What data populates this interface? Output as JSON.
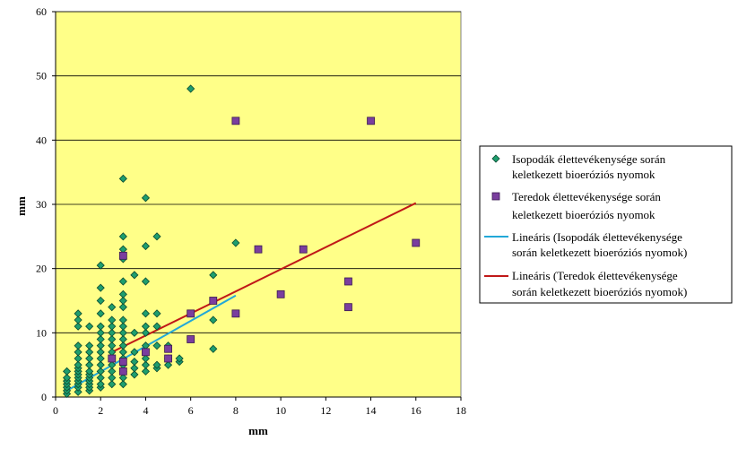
{
  "chart_data": {
    "type": "scatter",
    "xlabel": "mm",
    "ylabel": "mm",
    "xlim": [
      0,
      18
    ],
    "ylim": [
      0,
      60
    ],
    "xticks": [
      0,
      2,
      4,
      6,
      8,
      10,
      12,
      14,
      16,
      18
    ],
    "yticks": [
      0,
      10,
      20,
      30,
      40,
      50,
      60
    ],
    "grid": "horizontal",
    "legend_position": "right",
    "colors": {
      "figure_background": "#ffffff",
      "plot_background": "#ffff88",
      "gridline": "#000000",
      "isopoda": "#1e9e6e",
      "teredo": "#7a3e9e",
      "isopoda_trend": "#22a8d8",
      "teredo_trend": "#c01818"
    },
    "series": [
      {
        "name": "Isopodák élettevékenysége során keletkezett bioeróziós nyomok",
        "marker": "diamond",
        "points": [
          [
            0.5,
            0.5
          ],
          [
            0.5,
            1
          ],
          [
            0.5,
            1.5
          ],
          [
            0.5,
            2
          ],
          [
            0.5,
            2.5
          ],
          [
            0.5,
            3
          ],
          [
            0.5,
            4
          ],
          [
            1,
            0.8
          ],
          [
            1,
            1.5
          ],
          [
            1,
            2
          ],
          [
            1,
            2.5
          ],
          [
            1,
            3
          ],
          [
            1,
            3.5
          ],
          [
            1,
            4
          ],
          [
            1,
            4.5
          ],
          [
            1,
            5
          ],
          [
            1,
            6
          ],
          [
            1,
            7
          ],
          [
            1,
            8
          ],
          [
            1,
            11
          ],
          [
            1,
            12
          ],
          [
            1,
            13
          ],
          [
            1.5,
            1
          ],
          [
            1.5,
            1.5
          ],
          [
            1.5,
            2
          ],
          [
            1.5,
            2.5
          ],
          [
            1.5,
            3
          ],
          [
            1.5,
            3.5
          ],
          [
            1.5,
            4
          ],
          [
            1.5,
            5
          ],
          [
            1.5,
            6
          ],
          [
            1.5,
            7
          ],
          [
            1.5,
            8
          ],
          [
            1.5,
            11
          ],
          [
            2,
            1.5
          ],
          [
            2,
            2
          ],
          [
            2,
            3
          ],
          [
            2,
            4
          ],
          [
            2,
            5
          ],
          [
            2,
            6
          ],
          [
            2,
            7
          ],
          [
            2,
            8
          ],
          [
            2,
            9
          ],
          [
            2,
            10
          ],
          [
            2,
            11
          ],
          [
            2,
            13
          ],
          [
            2,
            15
          ],
          [
            2,
            17
          ],
          [
            2,
            20.5
          ],
          [
            2.5,
            2
          ],
          [
            2.5,
            3
          ],
          [
            2.5,
            4
          ],
          [
            2.5,
            5
          ],
          [
            2.5,
            6
          ],
          [
            2.5,
            7
          ],
          [
            2.5,
            8
          ],
          [
            2.5,
            9
          ],
          [
            2.5,
            10
          ],
          [
            2.5,
            11
          ],
          [
            2.5,
            12
          ],
          [
            2.5,
            14
          ],
          [
            3,
            2
          ],
          [
            3,
            3
          ],
          [
            3,
            4
          ],
          [
            3,
            5
          ],
          [
            3,
            6
          ],
          [
            3,
            7
          ],
          [
            3,
            8
          ],
          [
            3,
            9
          ],
          [
            3,
            10
          ],
          [
            3,
            11
          ],
          [
            3,
            12
          ],
          [
            3,
            14
          ],
          [
            3,
            15
          ],
          [
            3,
            16
          ],
          [
            3,
            18
          ],
          [
            3,
            21.5
          ],
          [
            3,
            23
          ],
          [
            3,
            25
          ],
          [
            3,
            34
          ],
          [
            3.5,
            3.5
          ],
          [
            3.5,
            4.5
          ],
          [
            3.5,
            5.5
          ],
          [
            3.5,
            7
          ],
          [
            3.5,
            10
          ],
          [
            3.5,
            19
          ],
          [
            4,
            4
          ],
          [
            4,
            5
          ],
          [
            4,
            6
          ],
          [
            4,
            8
          ],
          [
            4,
            10
          ],
          [
            4,
            11
          ],
          [
            4,
            13
          ],
          [
            4,
            18
          ],
          [
            4,
            23.5
          ],
          [
            4,
            31
          ],
          [
            4.5,
            4.5
          ],
          [
            4.5,
            5
          ],
          [
            4.5,
            8
          ],
          [
            4.5,
            11
          ],
          [
            4.5,
            13
          ],
          [
            4.5,
            25
          ],
          [
            5,
            5
          ],
          [
            5,
            6
          ],
          [
            5,
            8
          ],
          [
            5.5,
            5.5
          ],
          [
            5.5,
            6
          ],
          [
            6,
            48
          ],
          [
            7,
            7.5
          ],
          [
            7,
            12
          ],
          [
            7,
            19
          ],
          [
            8,
            24
          ]
        ]
      },
      {
        "name": "Teredok élettevékenysége során keletkezett bioeróziós nyomok",
        "marker": "square",
        "points": [
          [
            2.5,
            6
          ],
          [
            3,
            4
          ],
          [
            3,
            5.5
          ],
          [
            3,
            22
          ],
          [
            4,
            7
          ],
          [
            5,
            6
          ],
          [
            5,
            7.5
          ],
          [
            6,
            9
          ],
          [
            6,
            13
          ],
          [
            7,
            15
          ],
          [
            8,
            13
          ],
          [
            8,
            43
          ],
          [
            9,
            23
          ],
          [
            10,
            16
          ],
          [
            11,
            23
          ],
          [
            13,
            14
          ],
          [
            13,
            18
          ],
          [
            14,
            43
          ],
          [
            16,
            24
          ]
        ]
      },
      {
        "name": "Lineáris (Isopodák élettevékenysége során keletkezett bioeróziós nyomok)",
        "type": "line",
        "x": [
          0.5,
          8
        ],
        "y": [
          1,
          15.8
        ]
      },
      {
        "name": "Lineáris (Teredok élettevékenysége során keletkezett bioeróziós nyomok)",
        "type": "line",
        "x": [
          2.5,
          16
        ],
        "y": [
          7,
          30.2
        ]
      }
    ]
  },
  "legend": {
    "lines": [
      [
        "Isopodák élettevékenysége során",
        "keletkezett bioeróziós nyomok"
      ],
      [
        "Teredok élettevékenysége során",
        "keletkezett bioeróziós nyomok"
      ],
      [
        "Lineáris (Isopodák élettevékenysége",
        "során keletkezett bioeróziós nyomok)"
      ],
      [
        "Lineáris (Teredok élettevékenysége",
        "során keletkezett bioeróziós nyomok)"
      ]
    ]
  }
}
